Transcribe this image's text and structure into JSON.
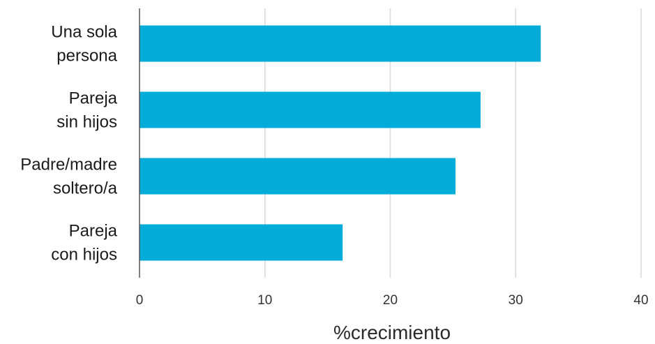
{
  "chart_data": {
    "type": "bar",
    "orientation": "horizontal",
    "categories": [
      [
        "Una sola",
        "persona"
      ],
      [
        "Pareja",
        "sin hijos"
      ],
      [
        "Padre/madre",
        "soltero/a"
      ],
      [
        "Pareja",
        "con hijos"
      ]
    ],
    "values": [
      32,
      27.2,
      25.2,
      16.2
    ],
    "xlabel": "%crecimiento",
    "ylabel": "",
    "xlim": [
      0,
      40
    ],
    "xticks": [
      0,
      10,
      20,
      30,
      40
    ],
    "grid": true,
    "bar_color": "#02acd9"
  }
}
